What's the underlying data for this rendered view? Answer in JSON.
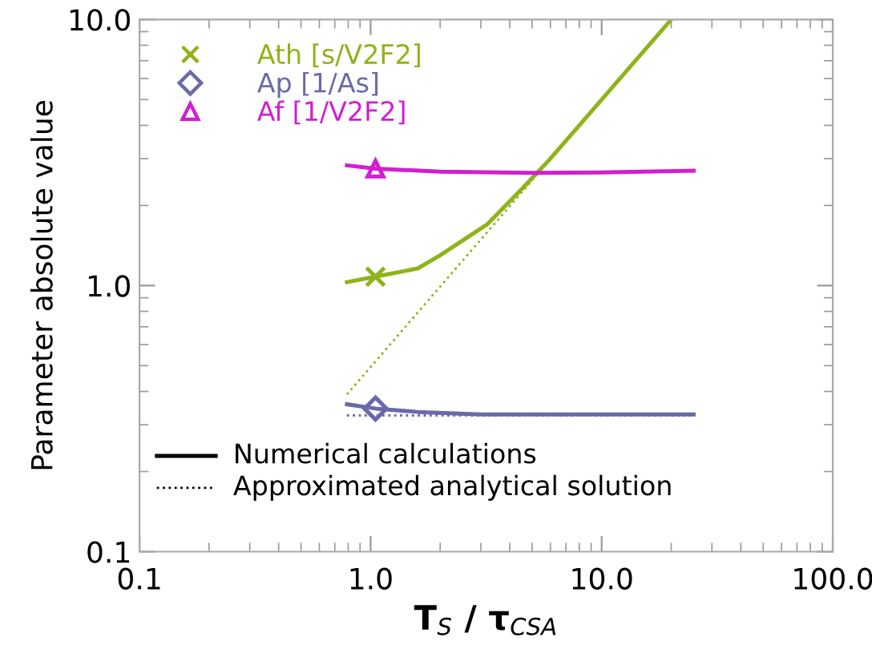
{
  "chart_data": {
    "type": "line",
    "xlabel": "T$_{S}$ / τ$_{CSA}$",
    "ylabel": "Parameter absolute value",
    "log": "xy",
    "xlim": [
      0.1,
      100
    ],
    "ylim": [
      0.1,
      10
    ],
    "xticks": [
      {
        "value": 0.1,
        "label": "0.1"
      },
      {
        "value": 1,
        "label": "1.0"
      },
      {
        "value": 10,
        "label": "10.0"
      },
      {
        "value": 100,
        "label": "100.0"
      }
    ],
    "yticks": [
      {
        "value": 0.1,
        "label": "0.1"
      },
      {
        "value": 1,
        "label": "1.0"
      },
      {
        "value": 10,
        "label": "10.0"
      }
    ],
    "legend": "top left",
    "grid": false,
    "series": [
      {
        "color": "#8fb31a",
        "line_style": "solid",
        "x": [
          0.79,
          1.05,
          1.6,
          2.0,
          3.2,
          4.5,
          6,
          10,
          20
        ],
        "values": [
          1.03,
          1.08,
          1.16,
          1.3,
          1.7,
          2.3,
          3.0,
          5.0,
          10
        ]
      },
      {
        "color": "#8fb31a",
        "line_style": "dotted",
        "x": [
          0.79,
          20
        ],
        "values": [
          0.39,
          10
        ]
      },
      {
        "color": "#6a6aaa",
        "line_style": "solid",
        "x": [
          0.79,
          1.05,
          1.6,
          3,
          25
        ],
        "values": [
          0.358,
          0.345,
          0.335,
          0.328,
          0.328
        ]
      },
      {
        "color": "#6a6aaa",
        "line_style": "dotted",
        "x": [
          0.79,
          25
        ],
        "values": [
          0.325,
          0.325
        ]
      },
      {
        "color": "#d21ed2",
        "line_style": "solid",
        "x": [
          0.79,
          1.05,
          2,
          5,
          10,
          25
        ],
        "values": [
          2.83,
          2.75,
          2.68,
          2.65,
          2.66,
          2.7
        ]
      },
      {
        "type": "scatter",
        "name": "Ath [s/V2F2]",
        "color": "#8fb31a",
        "marker": "cross",
        "x": [
          1.05
        ],
        "values": [
          1.08
        ]
      },
      {
        "type": "scatter",
        "name": "Ap [1/As]",
        "color": "#6a6aaa",
        "marker": "diamond",
        "x": [
          1.05
        ],
        "values": [
          0.345
        ]
      },
      {
        "type": "scatter",
        "name": "Af [1/V2F2]",
        "color": "#d21ed2",
        "marker": "triangle",
        "x": [
          1.05
        ],
        "values": [
          2.75
        ]
      }
    ],
    "annotations": [
      "Numerical calculations",
      "Approximated analytical solution"
    ]
  }
}
